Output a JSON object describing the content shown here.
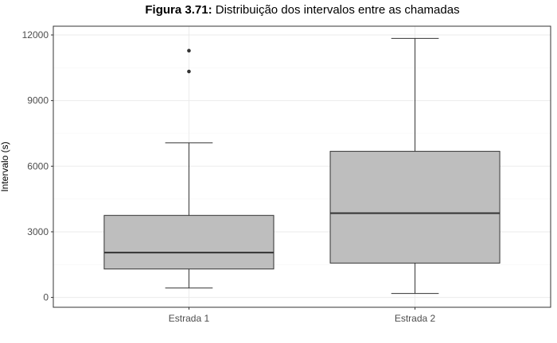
{
  "title": {
    "prefix": "Figura 3.71:",
    "text": " Distribuição dos intervalos entre as chamadas"
  },
  "chart_data": {
    "type": "box",
    "xlabel": "",
    "ylabel": "Intervalo (s)",
    "ylim": [
      -450,
      12400
    ],
    "yticks": [
      0,
      3000,
      6000,
      9000,
      12000
    ],
    "grid": true,
    "categories": [
      "Estrada 1",
      "Estrada 2"
    ],
    "boxes": [
      {
        "category": "Estrada 1",
        "whisker_low": 430,
        "q1": 1300,
        "median": 2050,
        "q3": 3750,
        "whisker_high": 7070,
        "outliers": [
          10330,
          11280
        ]
      },
      {
        "category": "Estrada 2",
        "whisker_low": 180,
        "q1": 1570,
        "median": 3850,
        "q3": 6680,
        "whisker_high": 11840,
        "outliers": []
      }
    ],
    "colors": {
      "box_fill": "#bebebe",
      "line": "#333333",
      "grid_major": "#ebebeb",
      "grid_minor": "#f5f5f5",
      "panel_border": "#333333"
    }
  }
}
